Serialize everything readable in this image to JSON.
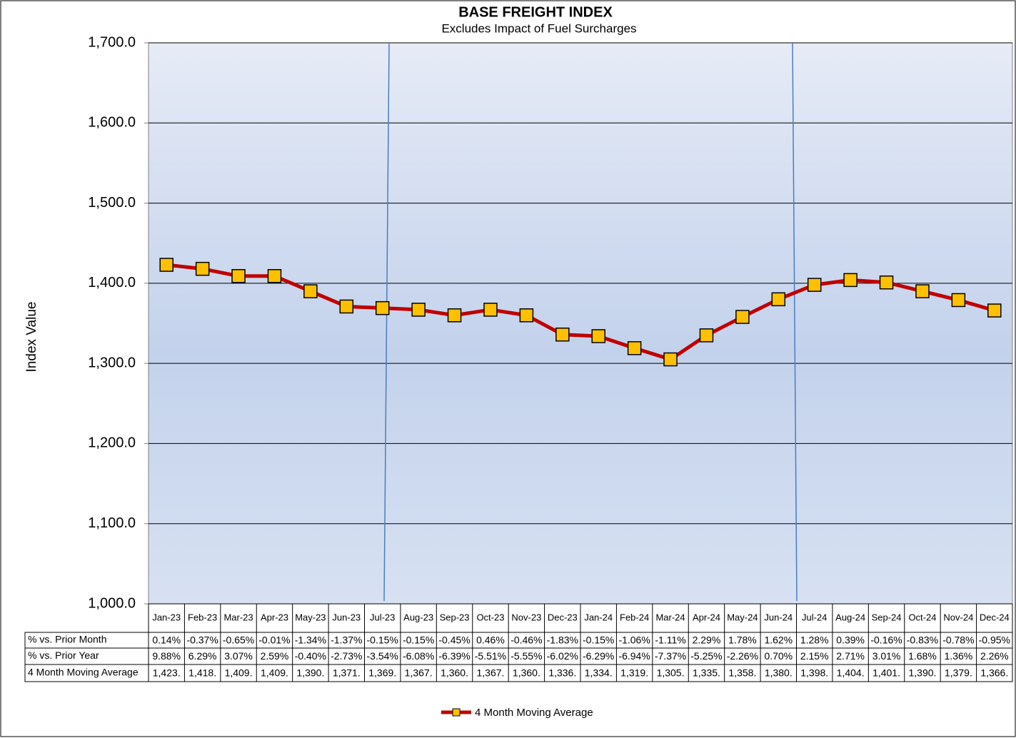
{
  "chart_data": {
    "type": "line",
    "title": "BASE FREIGHT INDEX",
    "subtitle": "Excludes Impact of Fuel Surcharges",
    "y_label": "Index Value",
    "categories": [
      "Jan-23",
      "Feb-23",
      "Mar-23",
      "Apr-23",
      "May-23",
      "Jun-23",
      "Jul-23",
      "Aug-23",
      "Sep-23",
      "Oct-23",
      "Nov-23",
      "Dec-23",
      "Jan-24",
      "Feb-24",
      "Mar-24",
      "Apr-24",
      "May-24",
      "Jun-24",
      "Jul-24",
      "Aug-24",
      "Sep-24",
      "Oct-24",
      "Nov-24",
      "Dec-24"
    ],
    "series": [
      {
        "name": "4 Month Moving Average",
        "color": "#c00000",
        "marker_color": "#ffc000",
        "values": [
          1423,
          1418,
          1409,
          1409,
          1390,
          1371,
          1369,
          1367,
          1360,
          1367,
          1360,
          1336,
          1334,
          1319,
          1305,
          1335,
          1358,
          1380,
          1398,
          1404,
          1401,
          1390,
          1379,
          1366
        ],
        "value_labels": [
          "1,423.",
          "1,418.",
          "1,409.",
          "1,409.",
          "1,390.",
          "1,371.",
          "1,369.",
          "1,367.",
          "1,360.",
          "1,367.",
          "1,360.",
          "1,336.",
          "1,334.",
          "1,319.",
          "1,305.",
          "1,335.",
          "1,358.",
          "1,380.",
          "1,398.",
          "1,404.",
          "1,401.",
          "1,390.",
          "1,379.",
          "1,366."
        ]
      }
    ],
    "ylim": [
      1000,
      1700
    ],
    "yticks": [
      {
        "value": 1000,
        "label": "1,000.0"
      },
      {
        "value": 1100,
        "label": "1,100.0"
      },
      {
        "value": 1200,
        "label": "1,200.0"
      },
      {
        "value": 1300,
        "label": "1,300.0"
      },
      {
        "value": 1400,
        "label": "1,400.0"
      },
      {
        "value": 1500,
        "label": "1,500.0"
      },
      {
        "value": 1600,
        "label": "1,600.0"
      },
      {
        "value": 1700,
        "label": "1,700.0"
      }
    ],
    "grid": true,
    "table": [
      {
        "label": "% vs. Prior Month",
        "cells": [
          "0.14%",
          "-0.37%",
          "-0.65%",
          "-0.01%",
          "-1.34%",
          "-1.37%",
          "-0.15%",
          "-0.15%",
          "-0.45%",
          "0.46%",
          "-0.46%",
          "-1.83%",
          "-0.15%",
          "-1.06%",
          "-1.11%",
          "2.29%",
          "1.78%",
          "1.62%",
          "1.28%",
          "0.39%",
          "-0.16%",
          "-0.83%",
          "-0.78%",
          "-0.95%"
        ]
      },
      {
        "label": "% vs. Prior Year",
        "cells": [
          "9.88%",
          "6.29%",
          "3.07%",
          "2.59%",
          "-0.40%",
          "-2.73%",
          "-3.54%",
          "-6.08%",
          "-6.39%",
          "-5.51%",
          "-5.55%",
          "-6.02%",
          "-6.29%",
          "-6.94%",
          "-7.37%",
          "-5.25%",
          "-2.26%",
          "0.70%",
          "2.15%",
          "2.71%",
          "3.01%",
          "1.68%",
          "1.36%",
          "2.26%"
        ]
      }
    ],
    "legend": "bottom"
  }
}
